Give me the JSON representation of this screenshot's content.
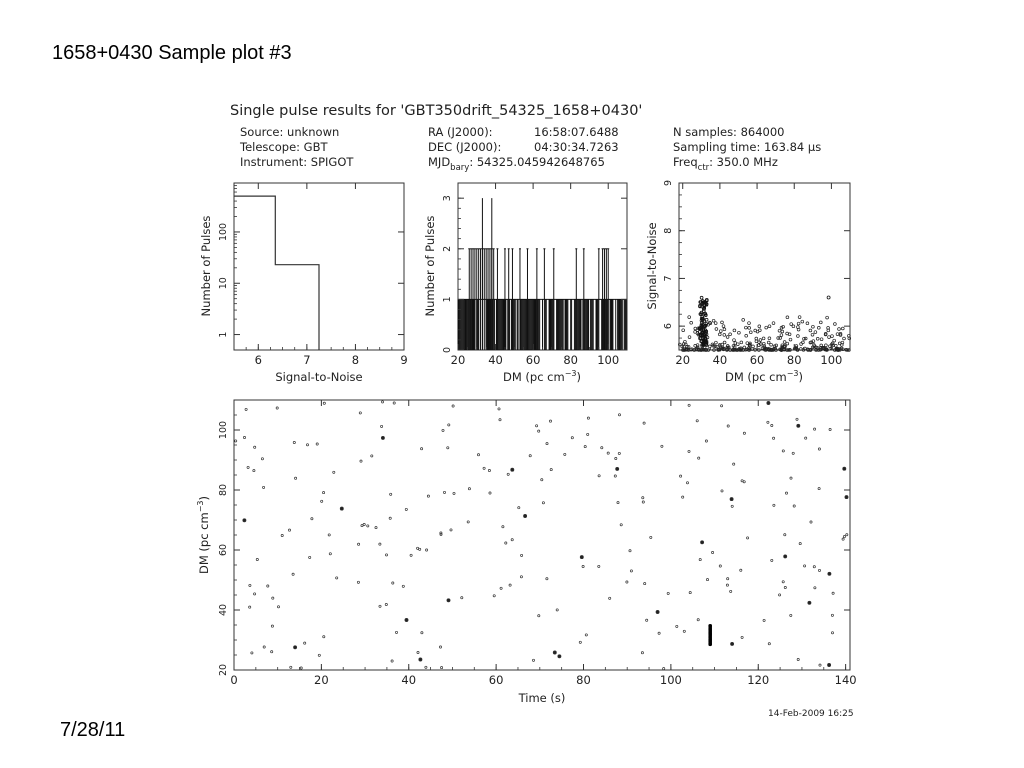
{
  "slide": {
    "title": "1658+0430 Sample plot #3",
    "date": "7/28/11"
  },
  "header": {
    "heading": "Single pulse results for 'GBT350drift_54325_1658+0430'",
    "col1": [
      "Source: unknown",
      "Telescope: GBT",
      "Instrument: SPIGOT"
    ],
    "col2_labels": [
      "RA (J2000):",
      "DEC (J2000):"
    ],
    "col2_values": [
      "16:58:07.6488",
      "04:30:34.7263"
    ],
    "mjd_label": "MJD",
    "mjd_sub": "bary",
    "mjd_value": ": 54325.045942648765",
    "col3": [
      "N samples: 864000",
      "Sampling time: 163.84 μs"
    ],
    "freq_label": "Freq",
    "freq_sub": "ctr",
    "freq_value": ": 350.0 MHz"
  },
  "timestamp": "14-Feb-2009 16:25",
  "chart_data": [
    {
      "type": "line",
      "panel": "snr-histogram",
      "xlabel": "Signal-to-Noise",
      "ylabel": "Number of Pulses",
      "xlim": [
        5.5,
        9
      ],
      "ylim": [
        0.5,
        900
      ],
      "yscale": "log",
      "xticks": [
        "6",
        "7",
        "8",
        "9"
      ],
      "yticks": [
        "1",
        "10",
        "100"
      ],
      "steps": [
        [
          5.5,
          500
        ],
        [
          6.35,
          500
        ],
        [
          6.35,
          23
        ],
        [
          7.25,
          23
        ],
        [
          7.25,
          0.5
        ]
      ]
    },
    {
      "type": "bar",
      "panel": "dm-histogram",
      "xlabel": "DM (pc cm",
      "xlabel_sup": "−3",
      "xlabel_close": ")",
      "ylabel": "Number of Pulses",
      "xlim": [
        20,
        110
      ],
      "ylim": [
        0,
        3.3
      ],
      "xticks": [
        "20",
        "40",
        "60",
        "80",
        "100"
      ],
      "yticks": [
        "0",
        "1",
        "2",
        "3"
      ],
      "base_range": [
        20,
        110
      ],
      "base_count": 1,
      "x2": [
        26,
        27,
        28,
        29,
        30,
        31,
        32,
        33,
        34,
        35,
        36,
        37,
        38,
        39,
        41,
        45,
        47,
        49,
        53,
        57,
        62,
        66,
        71,
        83,
        87,
        95,
        97,
        98,
        99,
        100
      ],
      "x3": [
        33,
        38
      ]
    },
    {
      "type": "scatter",
      "panel": "dm-vs-snr",
      "xlabel": "DM (pc cm",
      "xlabel_sup": "−3",
      "xlabel_close": ")",
      "ylabel": "Signal-to-Noise",
      "xlim": [
        18,
        110
      ],
      "ylim": [
        5.5,
        9.0
      ],
      "xticks": [
        "20",
        "40",
        "60",
        "80",
        "100"
      ],
      "yticks": [
        "6",
        "7",
        "8",
        "9"
      ],
      "outlier": [
        98.5,
        6.6
      ],
      "cluster_dm": [
        29,
        33
      ],
      "cluster_snr_max": 6.6
    },
    {
      "type": "scatter",
      "panel": "time-vs-dm",
      "xlabel": "Time (s)",
      "ylabel": "DM (pc cm",
      "ylabel_sup": "−3",
      "ylabel_close": ")",
      "xlim": [
        0,
        141
      ],
      "ylim": [
        20,
        110
      ],
      "xticks": [
        "0",
        "20",
        "40",
        "60",
        "80",
        "100",
        "120",
        "140"
      ],
      "yticks": [
        "20",
        "40",
        "60",
        "80",
        "100"
      ],
      "pulse_time": 109,
      "pulse_dm_range": [
        28.5,
        35
      ]
    }
  ]
}
